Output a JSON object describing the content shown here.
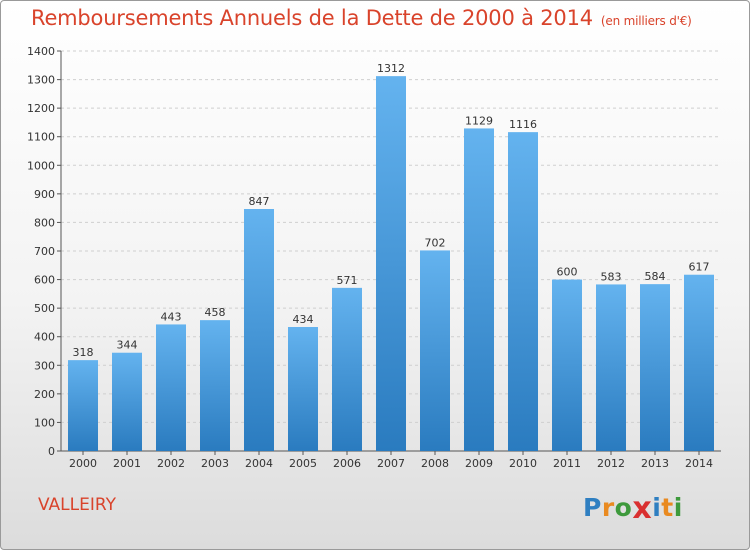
{
  "header": {
    "title": "Remboursements Annuels de la Dette de 2000 à 2014",
    "unit": "(en milliers d'€)"
  },
  "footer": {
    "commune": "VALLEIRY",
    "logo_letters": [
      {
        "char": "P",
        "color": "#2f7fc1"
      },
      {
        "char": "r",
        "color": "#e98a20"
      },
      {
        "char": "o",
        "color": "#3e9a3c"
      },
      {
        "char": "x",
        "color": "#d93030"
      },
      {
        "char": "i",
        "color": "#2f7fc1"
      },
      {
        "char": "t",
        "color": "#e98a20"
      },
      {
        "char": "i",
        "color": "#3e9a3c"
      }
    ]
  },
  "colors": {
    "bar_top": "#64b3ef",
    "bar_bottom": "#2a7bbf",
    "title": "#d9432b",
    "grid": "#cfcfcf",
    "text": "#333333"
  },
  "chart_data": {
    "type": "bar",
    "title": "Remboursements Annuels de la Dette de 2000 à 2014",
    "categories": [
      "2000",
      "2001",
      "2002",
      "2003",
      "2004",
      "2005",
      "2006",
      "2007",
      "2008",
      "2009",
      "2010",
      "2011",
      "2012",
      "2013",
      "2014"
    ],
    "values": [
      318,
      344,
      443,
      458,
      847,
      434,
      571,
      1312,
      702,
      1129,
      1116,
      600,
      583,
      584,
      617
    ],
    "ylim": [
      0,
      1400
    ],
    "yticks": [
      0,
      100,
      200,
      300,
      400,
      500,
      600,
      700,
      800,
      900,
      1000,
      1100,
      1200,
      1300,
      1400
    ],
    "grid": true,
    "xlabel": "",
    "ylabel": ""
  }
}
